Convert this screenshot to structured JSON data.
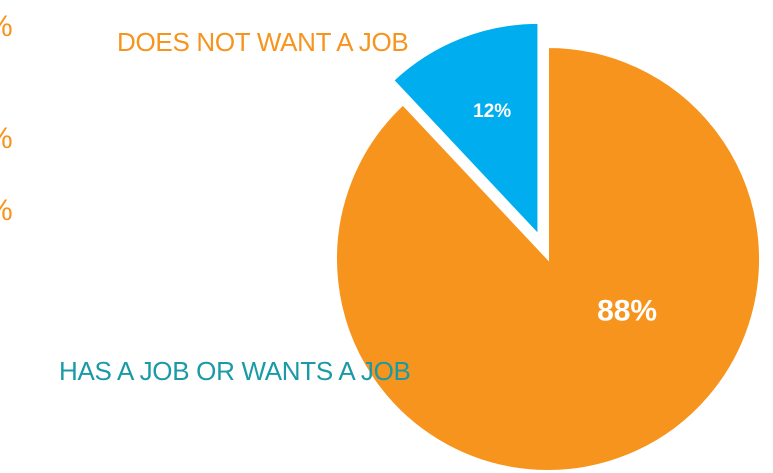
{
  "chart_data": {
    "type": "pie",
    "title": "",
    "slices": [
      {
        "label": "DOES NOT WANT A JOB",
        "value": 12,
        "value_label": "12%",
        "color": "#00AEEF",
        "label_color": "#F7941D",
        "exploded": true
      },
      {
        "label": "HAS A JOB OR WANTS A JOB",
        "value": 88,
        "value_label": "88%",
        "color": "#F7941D",
        "label_color": "#1A9AA6",
        "exploded": false
      }
    ],
    "data_label_color": "#FFFFFF",
    "start_angle": "12 o'clock",
    "direction": "clockwise"
  },
  "edge_fragments": [
    "%",
    "%",
    "%"
  ]
}
